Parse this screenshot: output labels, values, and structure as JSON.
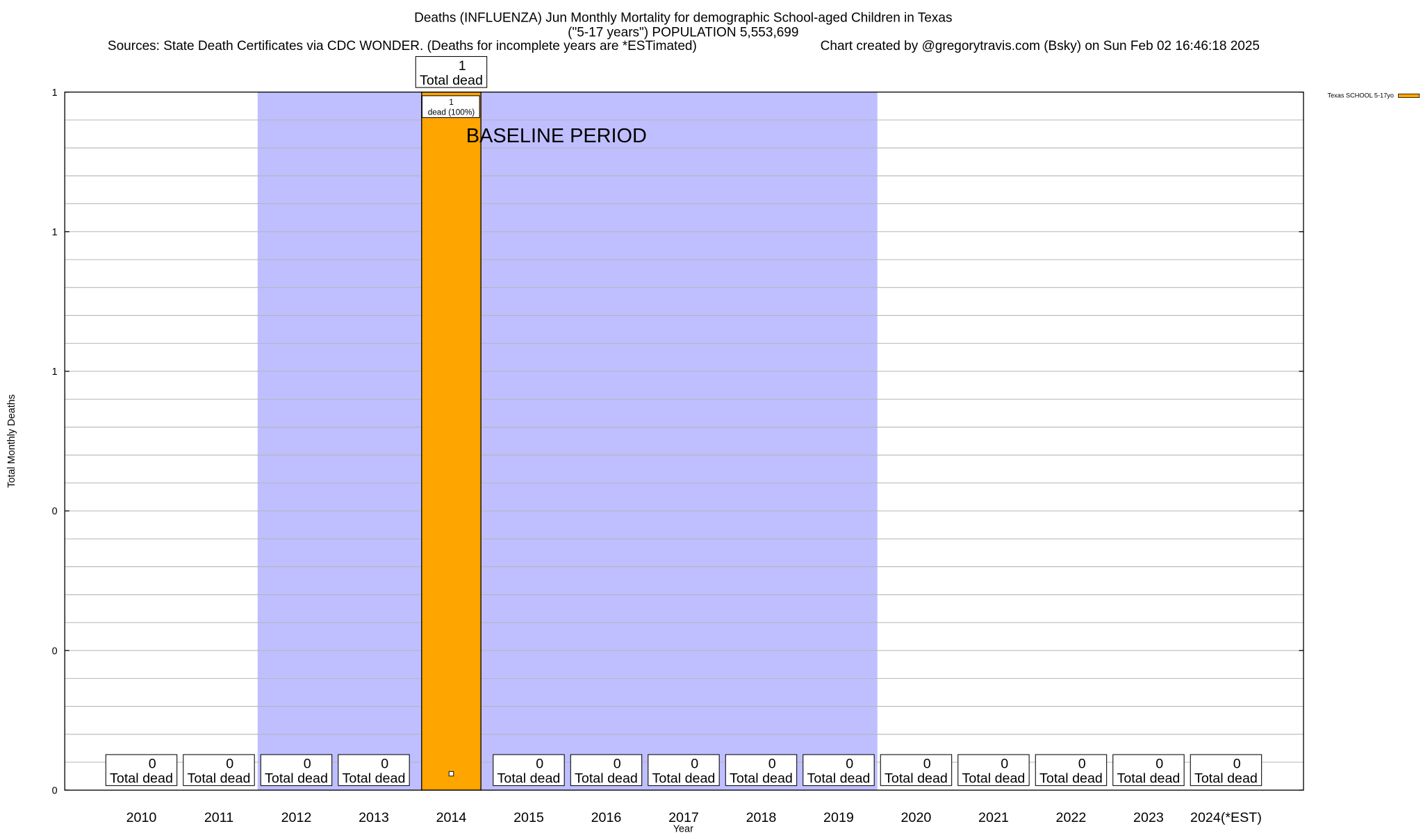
{
  "chart_data": {
    "type": "bar",
    "title": "Deaths (INFLUENZA) Jun Monthly Mortality for demographic School-aged Children in Texas",
    "subtitle": "(\"5-17 years\") POPULATION 5,553,699",
    "sources": "Sources: State Death Certificates via CDC WONDER. (Deaths for incomplete years are *ESTimated)",
    "credit": "Chart created by @gregorytravis.com (Bsky) on Sun Feb 02 16:46:18 2025",
    "xlabel": "Year",
    "ylabel": "Total Monthly Deaths",
    "ylim": [
      0,
      1
    ],
    "yticks": [
      0,
      0.2,
      0.4,
      0.6,
      0.8,
      1
    ],
    "ytick_labels": [
      "0",
      "0",
      "0",
      "1",
      "1",
      "1"
    ],
    "grid": true,
    "categories": [
      "2010",
      "2011",
      "2012",
      "2013",
      "2014",
      "2015",
      "2016",
      "2017",
      "2018",
      "2019",
      "2020",
      "2021",
      "2022",
      "2023",
      "2024(*EST)"
    ],
    "series": [
      {
        "name": "Texas SCHOOL 5-17yo",
        "color": "#ffa500",
        "values": [
          0,
          0,
          0,
          0,
          1,
          0,
          0,
          0,
          0,
          0,
          0,
          0,
          0,
          0,
          0
        ]
      }
    ],
    "total_label_suffix": "Total dead",
    "bar_inner_label": {
      "value": "1",
      "text": "dead (100%)"
    },
    "baseline": {
      "label": "BASELINE PERIOD",
      "from": "2012",
      "to": "2019",
      "color": "#bfbfff"
    },
    "legend_position": "top-right"
  }
}
